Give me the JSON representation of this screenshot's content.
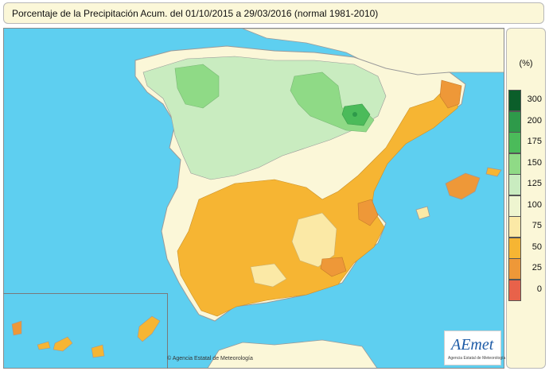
{
  "title": "Porcentaje de la Precipitación Acum. del 01/10/2015 a  29/03/2016  (normal 1981-2010)",
  "legend": {
    "unit": "(%)",
    "items": [
      {
        "label": "300",
        "color": "#0b5e2a"
      },
      {
        "label": "200",
        "color": "#2e9a4a"
      },
      {
        "label": "175",
        "color": "#4bbb5a"
      },
      {
        "label": "150",
        "color": "#8fda86"
      },
      {
        "label": "125",
        "color": "#c9ecc0"
      },
      {
        "label": "100",
        "color": "#eef5d0"
      },
      {
        "label": "75",
        "color": "#fbe9a6"
      },
      {
        "label": "50",
        "color": "#f6b533"
      },
      {
        "label": "25",
        "color": "#ee9838"
      },
      {
        "label": "0",
        "color": "#e8624a"
      }
    ]
  },
  "credit": "© Agencia Estatal de Meteorología",
  "logo": {
    "text": "AEmet",
    "subtitle": "Agencia Estatal de Meteorología"
  },
  "colors": {
    "sea": "#5ecff0",
    "land_neutral": "#fbf7d8",
    "border": "#9a9a9a"
  }
}
